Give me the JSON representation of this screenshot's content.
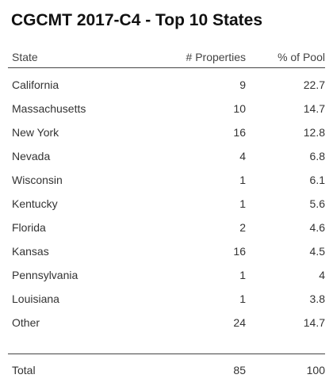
{
  "title": "CGCMT 2017-C4 - Top 10 States",
  "table": {
    "headers": {
      "state": "State",
      "properties": "# Properties",
      "pool": "% of Pool"
    },
    "rows": [
      {
        "state": "California",
        "properties": "9",
        "pool": "22.7"
      },
      {
        "state": "Massachusetts",
        "properties": "10",
        "pool": "14.7"
      },
      {
        "state": "New York",
        "properties": "16",
        "pool": "12.8"
      },
      {
        "state": "Nevada",
        "properties": "4",
        "pool": "6.8"
      },
      {
        "state": "Wisconsin",
        "properties": "1",
        "pool": "6.1"
      },
      {
        "state": "Kentucky",
        "properties": "1",
        "pool": "5.6"
      },
      {
        "state": "Florida",
        "properties": "2",
        "pool": "4.6"
      },
      {
        "state": "Kansas",
        "properties": "16",
        "pool": "4.5"
      },
      {
        "state": "Pennsylvania",
        "properties": "1",
        "pool": "4"
      },
      {
        "state": "Louisiana",
        "properties": "1",
        "pool": "3.8"
      },
      {
        "state": "Other",
        "properties": "24",
        "pool": "14.7"
      }
    ],
    "total": {
      "state": "Total",
      "properties": "85",
      "pool": "100"
    }
  }
}
